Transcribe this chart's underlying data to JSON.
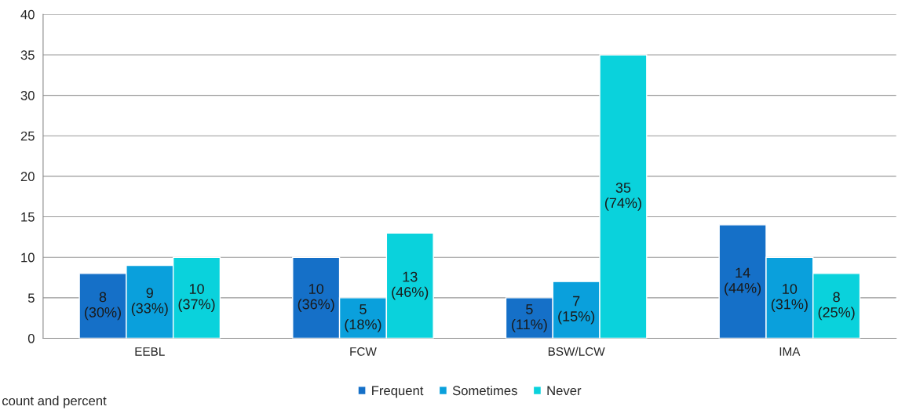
{
  "chart_data": {
    "type": "bar",
    "categories": [
      "EEBL",
      "FCW",
      "BSW/LCW",
      "IMA"
    ],
    "series": [
      {
        "name": "Frequent",
        "color": "#1570c8",
        "values": [
          8,
          10,
          5,
          14
        ],
        "value_labels": [
          "8\n(30%)",
          "10\n(36%)",
          "5\n(11%)",
          "14\n(44%)"
        ]
      },
      {
        "name": "Sometimes",
        "color": "#0aa0dc",
        "values": [
          9,
          5,
          7,
          10
        ],
        "value_labels": [
          "9\n(33%)",
          "5\n(18%)",
          "7\n(15%)",
          "10\n(31%)"
        ]
      },
      {
        "name": "Never",
        "color": "#0ad2dc",
        "values": [
          10,
          13,
          35,
          8
        ],
        "value_labels": [
          "10\n(37%)",
          "13\n(46%)",
          "35\n(74%)",
          "8\n(25%)"
        ]
      }
    ],
    "ylim": [
      0,
      40
    ],
    "yticks": [
      0,
      5,
      10,
      15,
      20,
      25,
      30,
      35,
      40
    ],
    "grid": "y",
    "legend": "bottom",
    "annotations": [
      "count and percent"
    ]
  }
}
